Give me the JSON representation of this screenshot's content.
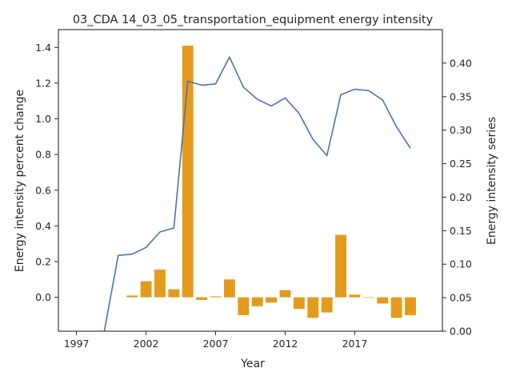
{
  "chart_data": {
    "type": "bar+line",
    "title": "03_CDA 14_03_05_transportation_equipment energy intensity",
    "xlabel": "Year",
    "ylabel_left": "Energy intensity percent change",
    "ylabel_right": "Energy intensity series",
    "xlim": [
      1995.7,
      2023.3
    ],
    "ylim_left": [
      -0.19,
      1.5
    ],
    "ylim_right": [
      0.0,
      0.45
    ],
    "x_ticks": [
      1997,
      2002,
      2007,
      2012,
      2017
    ],
    "y_ticks_left": [
      "0.0",
      "0.2",
      "0.4",
      "0.6",
      "0.8",
      "1.0",
      "1.2",
      "1.4"
    ],
    "y_ticks_right": [
      "0.00",
      "0.05",
      "0.10",
      "0.15",
      "0.20",
      "0.25",
      "0.30",
      "0.35",
      "0.40"
    ],
    "grid": false,
    "legend": "none",
    "colors": {
      "bars": "#E49B1C",
      "line": "#4C72B0",
      "axis": "#262626"
    },
    "bar_series": {
      "axis": "left",
      "x": [
        2001,
        2002,
        2003,
        2004,
        2005,
        2006,
        2007,
        2008,
        2009,
        2010,
        2011,
        2012,
        2013,
        2014,
        2015,
        2016,
        2017,
        2018,
        2019,
        2020,
        2021
      ],
      "values": [
        0.01,
        0.09,
        0.155,
        0.045,
        1.41,
        -0.015,
        0.005,
        0.1,
        -0.1,
        -0.05,
        -0.03,
        0.04,
        -0.065,
        -0.115,
        -0.085,
        0.35,
        0.015,
        0.0,
        -0.035,
        -0.115,
        -0.1
      ]
    },
    "line_series": {
      "axis": "right",
      "x": [
        1999,
        2000,
        2001,
        2002,
        2003,
        2004,
        2005,
        2006,
        2007,
        2008,
        2009,
        2010,
        2011,
        2012,
        2013,
        2014,
        2015,
        2016,
        2017,
        2018,
        2019,
        2020,
        2021
      ],
      "values": [
        0.0,
        0.113,
        0.115,
        0.125,
        0.148,
        0.154,
        0.373,
        0.367,
        0.369,
        0.409,
        0.364,
        0.346,
        0.336,
        0.348,
        0.325,
        0.286,
        0.262,
        0.353,
        0.361,
        0.359,
        0.345,
        0.305,
        0.273
      ]
    }
  }
}
